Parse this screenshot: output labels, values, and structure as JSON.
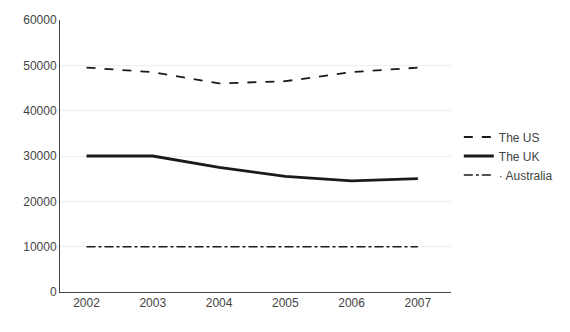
{
  "chart_data": {
    "type": "line",
    "x": [
      2002,
      2003,
      2004,
      2005,
      2006,
      2007
    ],
    "series": [
      {
        "name": "The US",
        "color": "#1a1a1a",
        "line_style": "dashed",
        "values": [
          49500,
          48500,
          46000,
          46500,
          48500,
          49500
        ]
      },
      {
        "name": "The UK",
        "color": "#1a1a1a",
        "line_style": "solid",
        "values": [
          30000,
          30000,
          27500,
          25500,
          24500,
          25000
        ]
      },
      {
        "name": "· Australia",
        "color": "#1a1a1a",
        "line_style": "dashdot",
        "values": [
          10000,
          10000,
          10000,
          10000,
          10000,
          10000
        ]
      }
    ],
    "xlim": [
      2001.6,
      2007.5
    ],
    "xticks": [
      2002,
      2003,
      2004,
      2005,
      2006,
      2007
    ],
    "ylim": [
      0,
      60000
    ],
    "yticks": [
      0,
      10000,
      20000,
      30000,
      40000,
      50000,
      60000
    ],
    "grid": true,
    "legend": "right"
  }
}
